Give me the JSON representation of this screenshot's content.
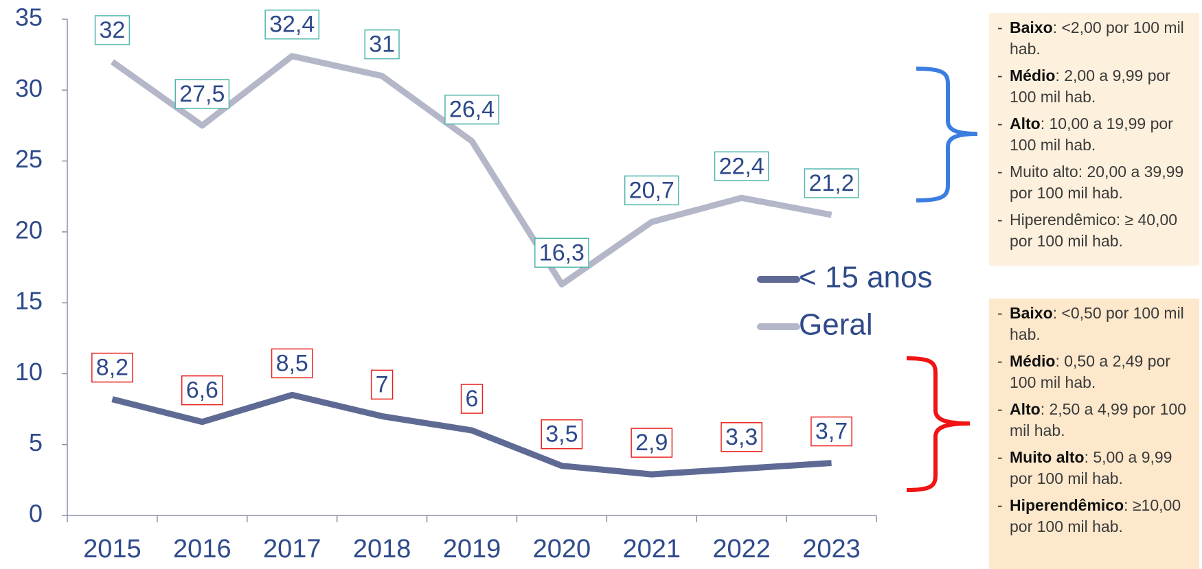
{
  "chart_data": {
    "type": "line",
    "categories": [
      "2015",
      "2016",
      "2017",
      "2018",
      "2019",
      "2020",
      "2021",
      "2022",
      "2023"
    ],
    "series": [
      {
        "name": "< 15 anos",
        "color": "#5f6a94",
        "label_border": "#e8231f",
        "values": [
          8.2,
          6.6,
          8.5,
          7,
          6,
          3.5,
          2.9,
          3.3,
          3.7
        ],
        "value_labels": [
          "8,2",
          "6,6",
          "8,5",
          "7",
          "6",
          "3,5",
          "2,9",
          "3,3",
          "3,7"
        ]
      },
      {
        "name": "Geral",
        "color": "#b4b7c8",
        "label_border": "#4db6ac",
        "values": [
          32,
          27.5,
          32.4,
          31,
          26.4,
          16.3,
          20.7,
          22.4,
          21.2
        ],
        "value_labels": [
          "32",
          "27,5",
          "32,4",
          "31",
          "26,4",
          "16,3",
          "20,7",
          "22,4",
          "21,2"
        ]
      }
    ],
    "ylim": [
      0,
      35
    ],
    "yticks": [
      0,
      5,
      10,
      15,
      20,
      25,
      30,
      35
    ],
    "grid": false
  },
  "panels": [
    {
      "items": [
        {
          "bold": "Baixo",
          "rest": ": <2,00 por 100 mil hab."
        },
        {
          "bold": "Médio",
          "rest": ": 2,00 a 9,99 por 100 mil hab."
        },
        {
          "bold": "Alto",
          "rest": ": 10,00 a 19,99 por 100 mil hab."
        },
        {
          "rest": "Muito alto: 20,00 a 39,99 por 100 mil hab."
        },
        {
          "rest": "Hiperendêmico: ≥ 40,00 por 100 mil hab."
        }
      ]
    },
    {
      "items": [
        {
          "bold": "Baixo",
          "rest": ": <0,50 por 100 mil hab."
        },
        {
          "bold": "Médio",
          "rest": ": 0,50 a 2,49 por 100 mil hab."
        },
        {
          "bold": "Alto",
          "rest": ": 2,50 a 4,99 por 100 mil hab."
        },
        {
          "bold": "Muito alto",
          "rest": ": 5,00 a 9,99 por 100 mil hab."
        },
        {
          "bold": "Hiperendêmico",
          "rest": ": ≥10,00 por 100 mil hab."
        }
      ]
    }
  ]
}
